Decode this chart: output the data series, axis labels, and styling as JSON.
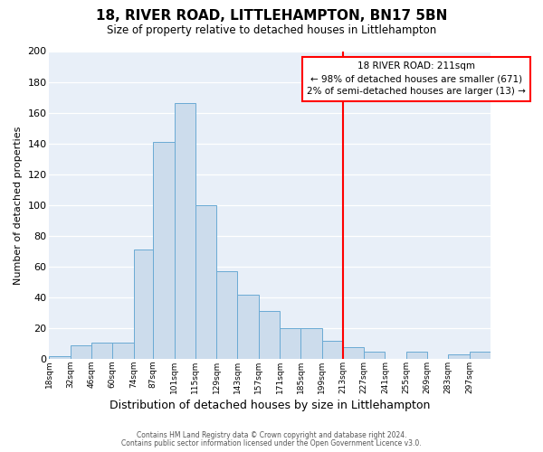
{
  "title": "18, RIVER ROAD, LITTLEHAMPTON, BN17 5BN",
  "subtitle": "Size of property relative to detached houses in Littlehampton",
  "xlabel": "Distribution of detached houses by size in Littlehampton",
  "ylabel": "Number of detached properties",
  "bar_color": "#ccdcec",
  "bar_edge_color": "#6aaad4",
  "background_color": "#e8eff8",
  "grid_color": "#d0d8e4",
  "bin_labels": [
    "18sqm",
    "32sqm",
    "46sqm",
    "60sqm",
    "74sqm",
    "87sqm",
    "101sqm",
    "115sqm",
    "129sqm",
    "143sqm",
    "157sqm",
    "171sqm",
    "185sqm",
    "199sqm",
    "213sqm",
    "227sqm",
    "241sqm",
    "255sqm",
    "269sqm",
    "283sqm",
    "297sqm"
  ],
  "bin_edges": [
    18,
    32,
    46,
    60,
    74,
    87,
    101,
    115,
    129,
    143,
    157,
    171,
    185,
    199,
    213,
    227,
    241,
    255,
    269,
    283,
    297,
    311
  ],
  "bar_heights": [
    2,
    9,
    11,
    11,
    71,
    141,
    166,
    100,
    57,
    42,
    31,
    20,
    20,
    12,
    8,
    5,
    0,
    5,
    0,
    3,
    5
  ],
  "ylim": [
    0,
    200
  ],
  "yticks": [
    0,
    20,
    40,
    60,
    80,
    100,
    120,
    140,
    160,
    180,
    200
  ],
  "red_line_x": 213,
  "annotation_title": "18 RIVER ROAD: 211sqm",
  "annotation_line1": "← 98% of detached houses are smaller (671)",
  "annotation_line2": "2% of semi-detached houses are larger (13) →",
  "footnote1": "Contains HM Land Registry data © Crown copyright and database right 2024.",
  "footnote2": "Contains public sector information licensed under the Open Government Licence v3.0."
}
